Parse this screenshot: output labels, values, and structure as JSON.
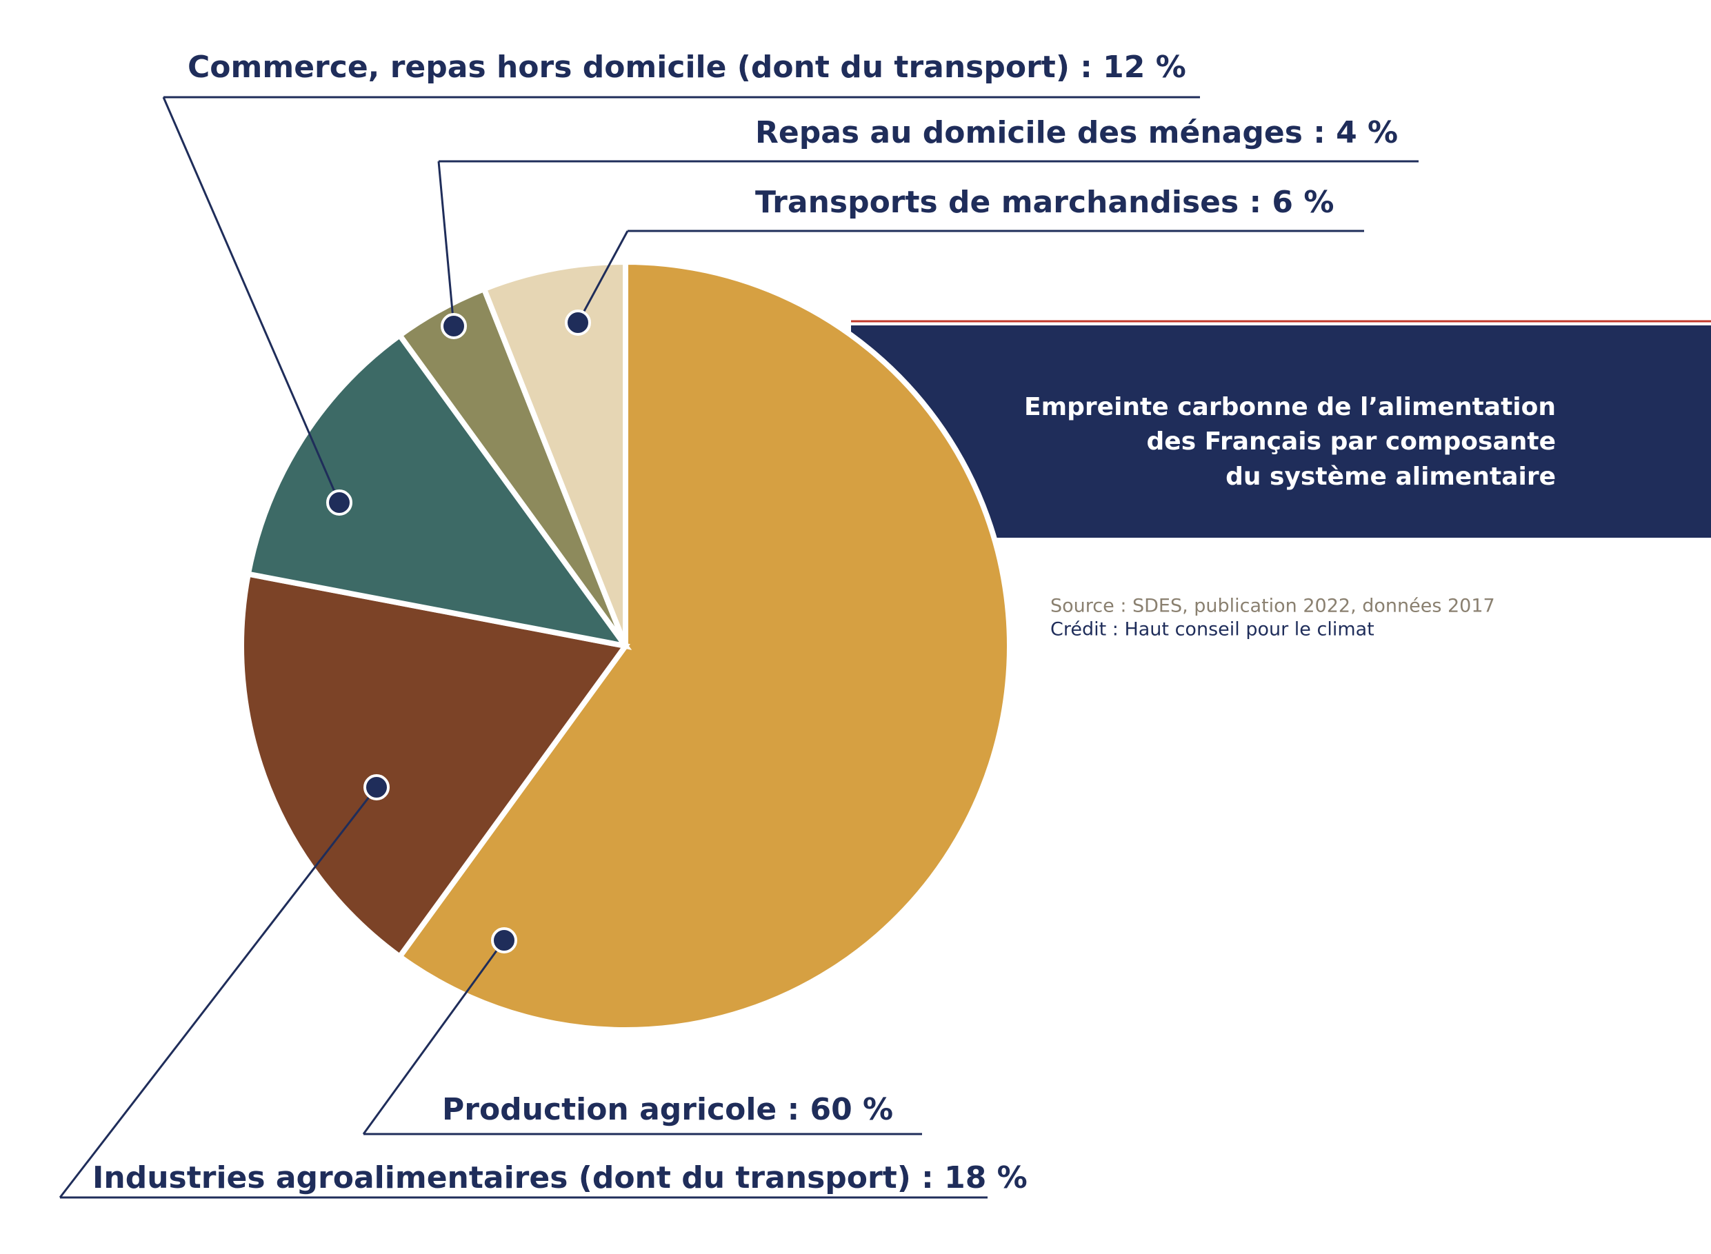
{
  "chart_data": {
    "type": "pie",
    "title": [
      "Empreinte carbonne de l’alimentation",
      "des Français par composante",
      "du système alimentaire"
    ],
    "values": [
      60,
      18,
      12,
      4,
      6
    ],
    "value_labels": [
      "Production agricole : 60 %",
      "Industries agroalimentaires (dont du transport) : 18 %",
      "Commerce, repas hors domicile (dont du transport) : 12 %",
      "Repas au domicile des ménages : 4 %",
      "Transports de marchandises : 6 %"
    ],
    "colors": [
      "#d6a042",
      "#7c4327",
      "#3d6a66",
      "#8d8a5c",
      "#e6d6b4"
    ],
    "source": "Source : SDES, publication 2022, données 2017",
    "credit": "Crédit : Haut conseil pour le climat"
  }
}
